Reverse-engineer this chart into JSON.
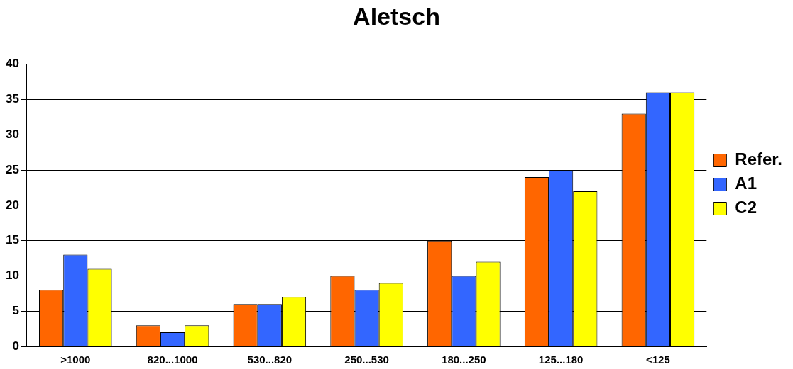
{
  "chart_data": {
    "type": "bar",
    "title": "Aletsch",
    "categories": [
      ">1000",
      "820...1000",
      "530...820",
      "250...530",
      "180...250",
      "125...180",
      "<125"
    ],
    "series": [
      {
        "name": "Refer.",
        "color": "#ff6600",
        "values": [
          8,
          3,
          6,
          10,
          15,
          24,
          33
        ]
      },
      {
        "name": "A1",
        "color": "#3366ff",
        "values": [
          13,
          2,
          6,
          8,
          10,
          25,
          36
        ]
      },
      {
        "name": "C2",
        "color": "#ffff00",
        "values": [
          11,
          3,
          7,
          9,
          12,
          22,
          36
        ]
      }
    ],
    "ylim": [
      0,
      40
    ],
    "yticks": [
      0,
      5,
      10,
      15,
      20,
      25,
      30,
      35,
      40
    ],
    "grid": "y",
    "legend": "right"
  }
}
